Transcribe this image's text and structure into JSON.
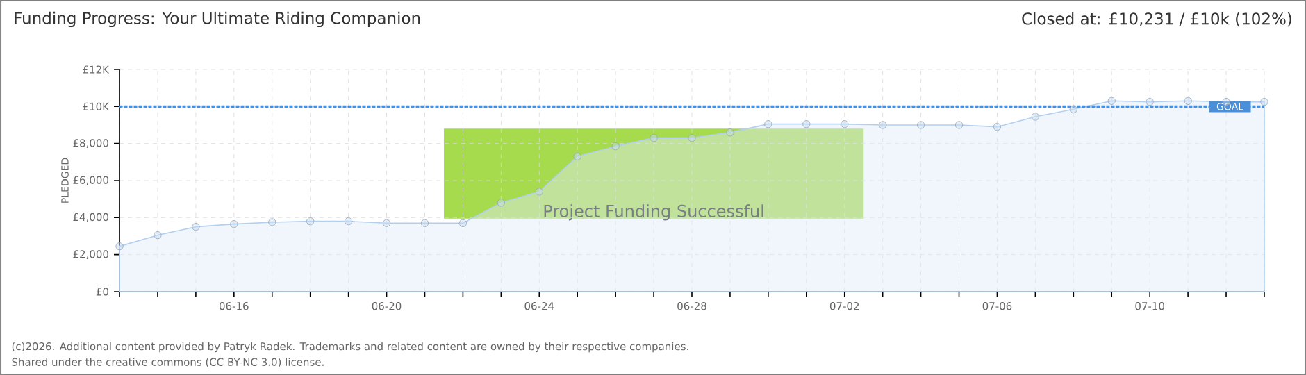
{
  "chart_data": {
    "type": "area",
    "title": "Funding Progress: Your Ultimate Riding Companion",
    "subtitle": "Closed at:  £10,231 /  £10k (102%)",
    "ylabel": "PLEDGED",
    "categories": [
      null,
      null,
      null,
      "06-16",
      null,
      null,
      null,
      "06-20",
      null,
      null,
      null,
      "06-24",
      null,
      null,
      null,
      "06-28",
      null,
      null,
      null,
      "07-02",
      null,
      null,
      null,
      "07-06",
      null,
      null,
      null,
      "07-10",
      null,
      null,
      null
    ],
    "series": [
      {
        "color": "#b3cff0",
        "values": [
          2450,
          3050,
          3500,
          3650,
          3750,
          3800,
          3800,
          3700,
          3700,
          3700,
          4800,
          5400,
          7300,
          7850,
          8300,
          8300,
          8600,
          9050,
          9050,
          9050,
          9000,
          9000,
          9000,
          8900,
          9450,
          9850,
          10300,
          10250,
          10300,
          10250,
          10250
        ]
      }
    ],
    "ylim": [
      0,
      12000
    ],
    "yticks": [
      {
        "value": 0,
        "label": "£0"
      },
      {
        "value": 2000,
        "label": "£2,000"
      },
      {
        "value": 4000,
        "label": "£4,000"
      },
      {
        "value": 6000,
        "label": "£6,000"
      },
      {
        "value": 8000,
        "label": "£8,000"
      },
      {
        "value": 10000,
        "label": "£10K"
      },
      {
        "value": 12000,
        "label": "£12K"
      }
    ],
    "ref_lines": [
      {
        "axis": "y",
        "value": 10000,
        "label": "GOAL",
        "color": "#4a8fd8",
        "line_style": "dashed"
      }
    ],
    "annotations": [
      "Project Funding Successful",
      "(c)2026. Additional content provided by Patryk Radek. Trademarks and related content are owned by their respective companies.",
      "Shared under the creative commons (CC BY-NC 3.0) license."
    ],
    "grid": true,
    "marker": "circle"
  }
}
